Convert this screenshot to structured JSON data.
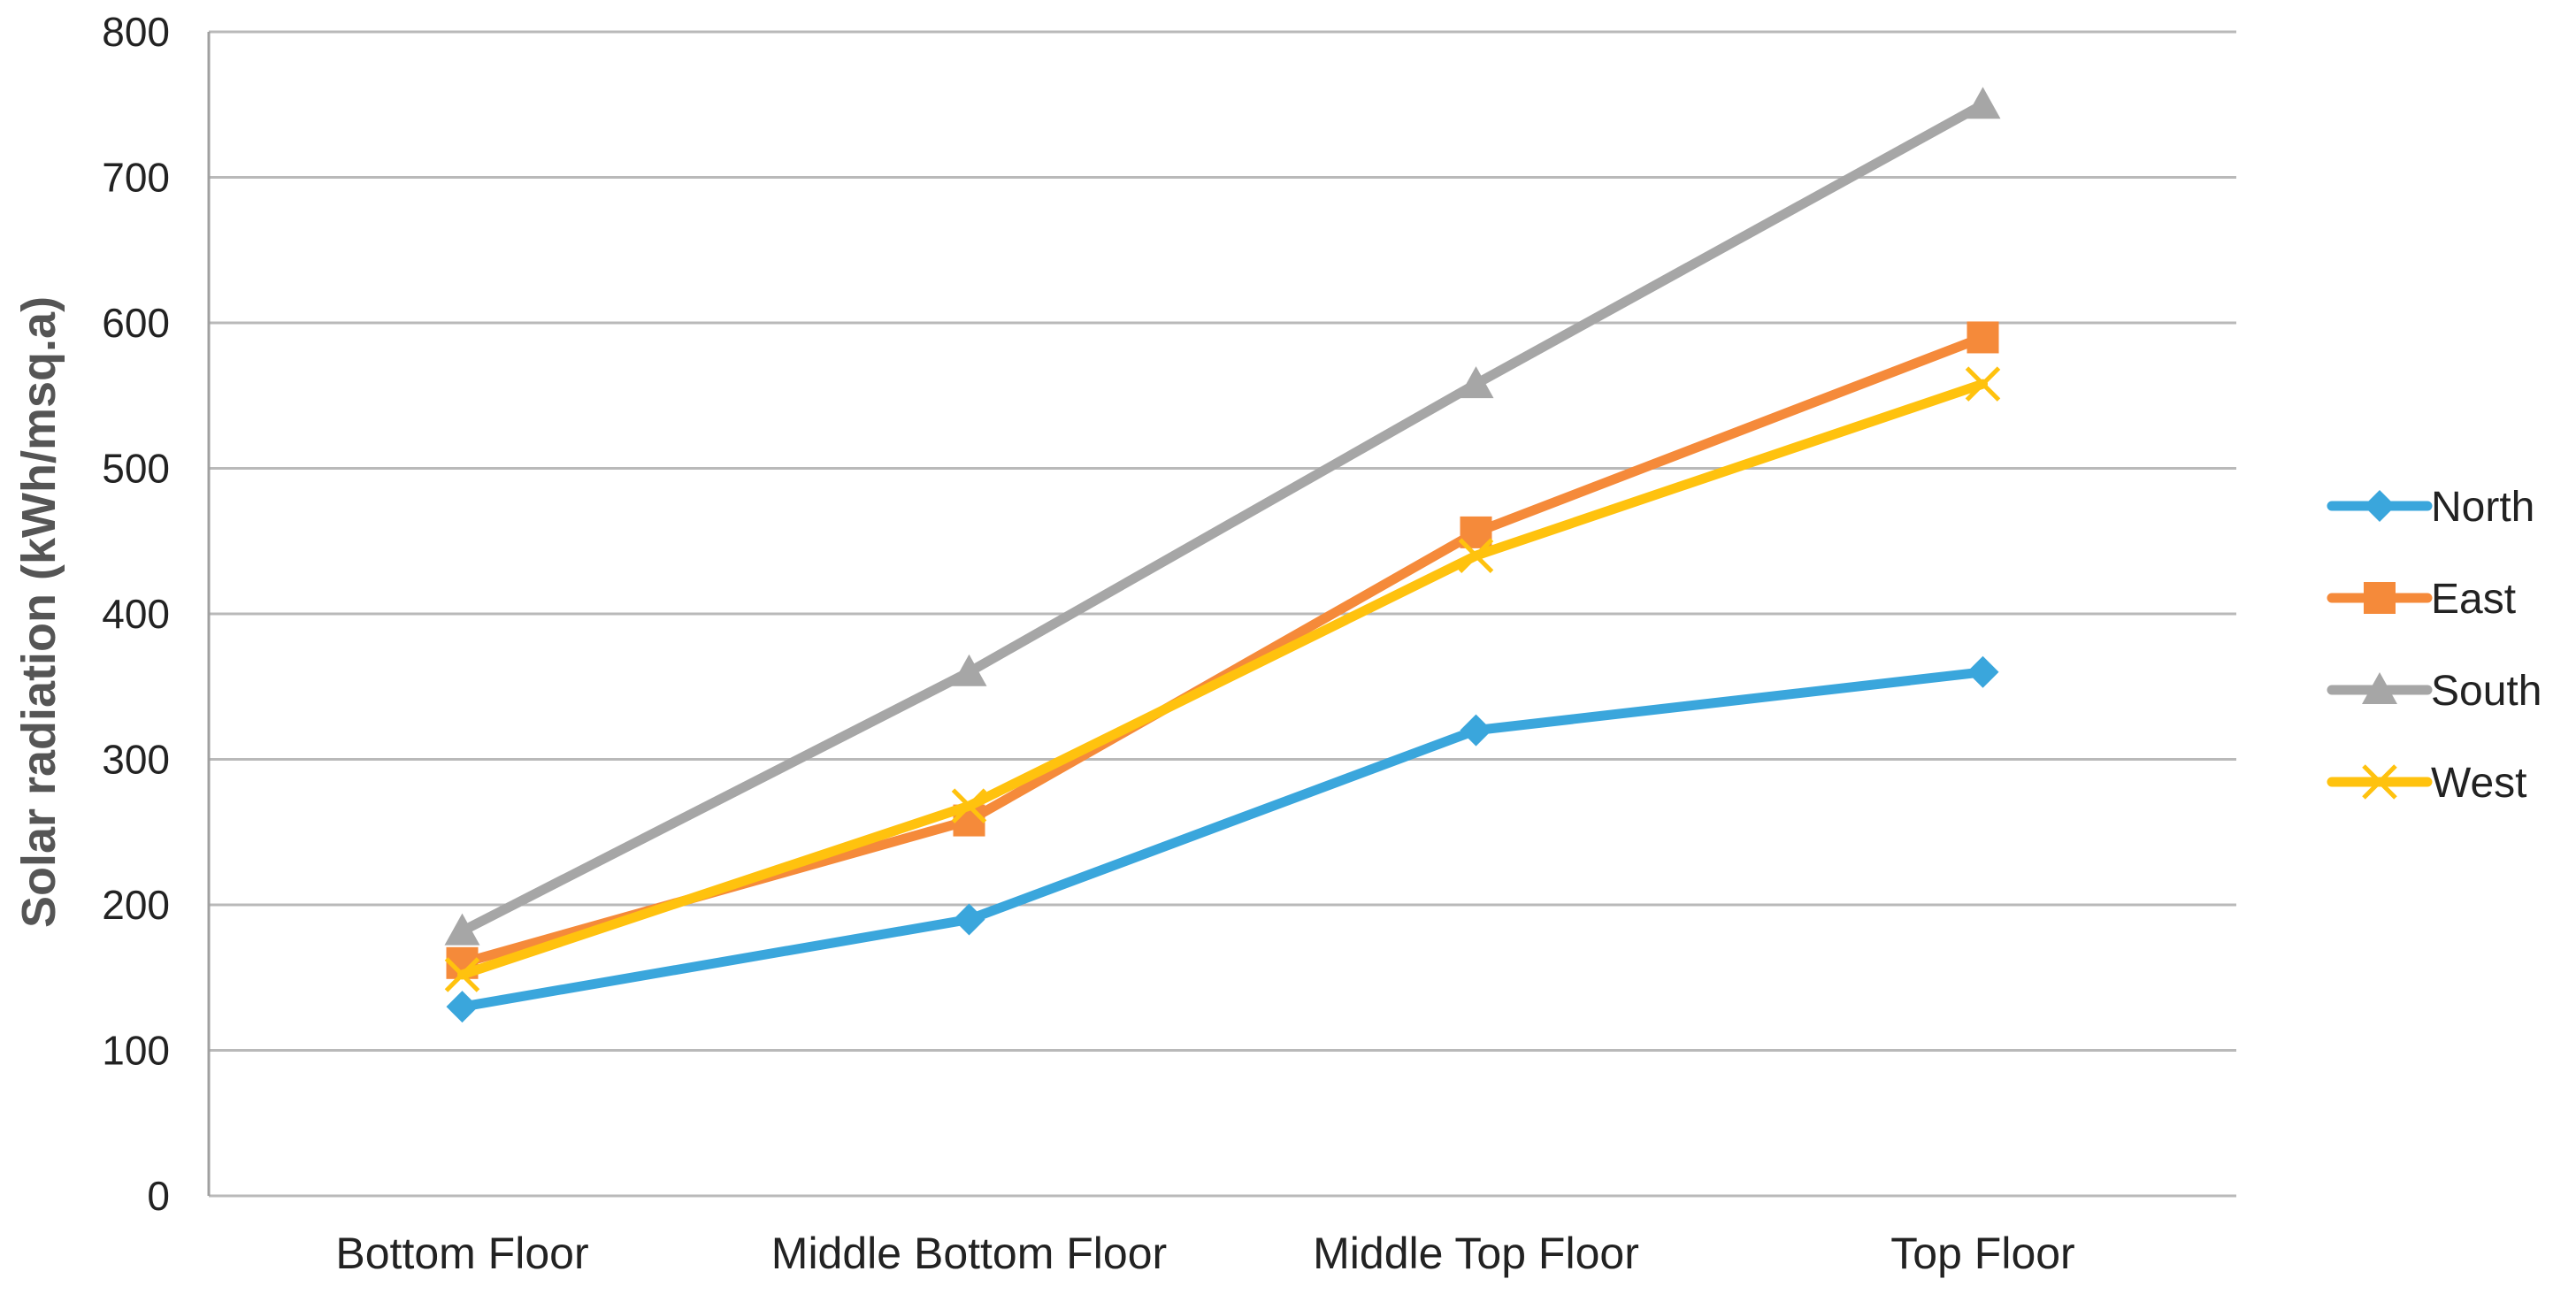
{
  "chart_data": {
    "type": "line",
    "title": "",
    "xlabel": "",
    "ylabel": "Solar radiation (kWh/msq.a)",
    "ylim": [
      0,
      800
    ],
    "yticks": [
      0,
      100,
      200,
      300,
      400,
      500,
      600,
      700,
      800
    ],
    "grid": true,
    "legend_position": "right",
    "categories": [
      "Bottom Floor",
      "Middle Bottom Floor",
      "Middle Top Floor",
      "Top Floor"
    ],
    "series": [
      {
        "name": "North",
        "color": "#3aa6dc",
        "marker": "diamond",
        "values": [
          130,
          190,
          320,
          360
        ]
      },
      {
        "name": "East",
        "color": "#f58a3a",
        "marker": "square",
        "values": [
          160,
          258,
          456,
          590
        ]
      },
      {
        "name": "South",
        "color": "#a6a6a6",
        "marker": "triangle",
        "values": [
          182,
          360,
          558,
          750
        ]
      },
      {
        "name": "West",
        "color": "#ffc20e",
        "marker": "x",
        "values": [
          152,
          268,
          440,
          558
        ]
      }
    ]
  }
}
